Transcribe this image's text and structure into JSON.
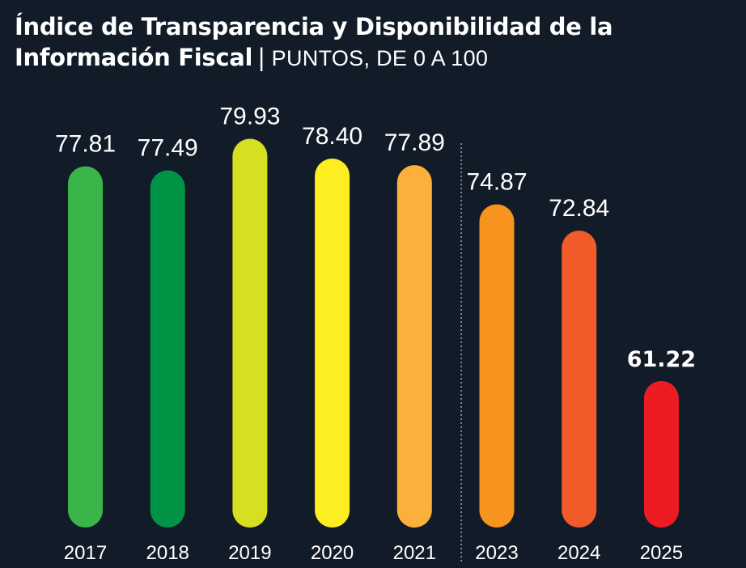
{
  "chart_data": {
    "type": "bar",
    "title": "Índice de Transparencia y Disponibilidad de la Información Fiscal",
    "subtitle": "PUNTOS, DE 0 A 100",
    "xlabel": "",
    "ylabel": "",
    "categories": [
      "2017",
      "2018",
      "2019",
      "2020",
      "2021",
      "2023",
      "2024",
      "2025"
    ],
    "values": [
      77.81,
      77.49,
      79.93,
      78.4,
      77.89,
      74.87,
      72.84,
      61.22
    ],
    "data_labels": [
      "77.81",
      "77.49",
      "79.93",
      "78.40",
      "77.89",
      "74.87",
      "72.84",
      "61.22"
    ],
    "highlighted_index": 7,
    "colors": [
      "#3ab54a",
      "#009345",
      "#d7df23",
      "#fcee21",
      "#fbb03b",
      "#f7941d",
      "#f15a29",
      "#ed1c24"
    ],
    "separator_after_category": "2021",
    "grid": false,
    "legend": "none",
    "background": "#121b28"
  }
}
